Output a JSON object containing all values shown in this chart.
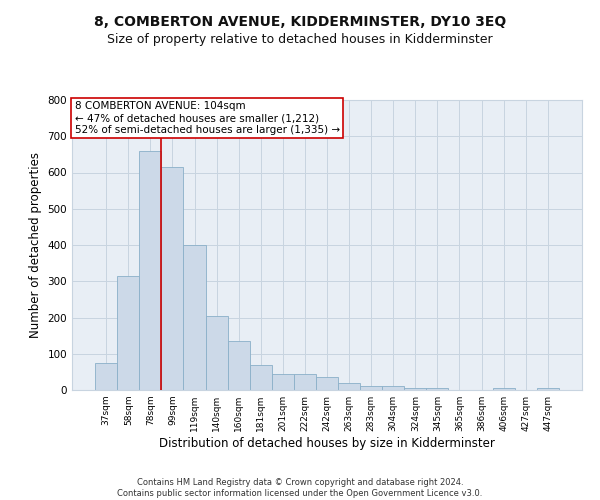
{
  "title": "8, COMBERTON AVENUE, KIDDERMINSTER, DY10 3EQ",
  "subtitle": "Size of property relative to detached houses in Kidderminster",
  "xlabel": "Distribution of detached houses by size in Kidderminster",
  "ylabel": "Number of detached properties",
  "categories": [
    "37sqm",
    "58sqm",
    "78sqm",
    "99sqm",
    "119sqm",
    "140sqm",
    "160sqm",
    "181sqm",
    "201sqm",
    "222sqm",
    "242sqm",
    "263sqm",
    "283sqm",
    "304sqm",
    "324sqm",
    "345sqm",
    "365sqm",
    "386sqm",
    "406sqm",
    "427sqm",
    "447sqm"
  ],
  "values": [
    75,
    315,
    660,
    615,
    400,
    205,
    135,
    70,
    45,
    45,
    35,
    20,
    12,
    10,
    6,
    5,
    1,
    1,
    6,
    1,
    6
  ],
  "bar_color": "#ccd9e8",
  "bar_edge_color": "#8aafc8",
  "vline_x": 2.5,
  "vline_color": "#cc0000",
  "annotation_text": "8 COMBERTON AVENUE: 104sqm\n← 47% of detached houses are smaller (1,212)\n52% of semi-detached houses are larger (1,335) →",
  "annotation_box_color": "#ffffff",
  "annotation_box_edge": "#cc0000",
  "ylim": [
    0,
    800
  ],
  "yticks": [
    0,
    100,
    200,
    300,
    400,
    500,
    600,
    700,
    800
  ],
  "grid_color": "#c8d4e0",
  "bg_color": "#e8eef5",
  "footer": "Contains HM Land Registry data © Crown copyright and database right 2024.\nContains public sector information licensed under the Open Government Licence v3.0.",
  "title_fontsize": 10,
  "subtitle_fontsize": 9,
  "xlabel_fontsize": 8.5,
  "ylabel_fontsize": 8.5,
  "annot_fontsize": 7.5
}
